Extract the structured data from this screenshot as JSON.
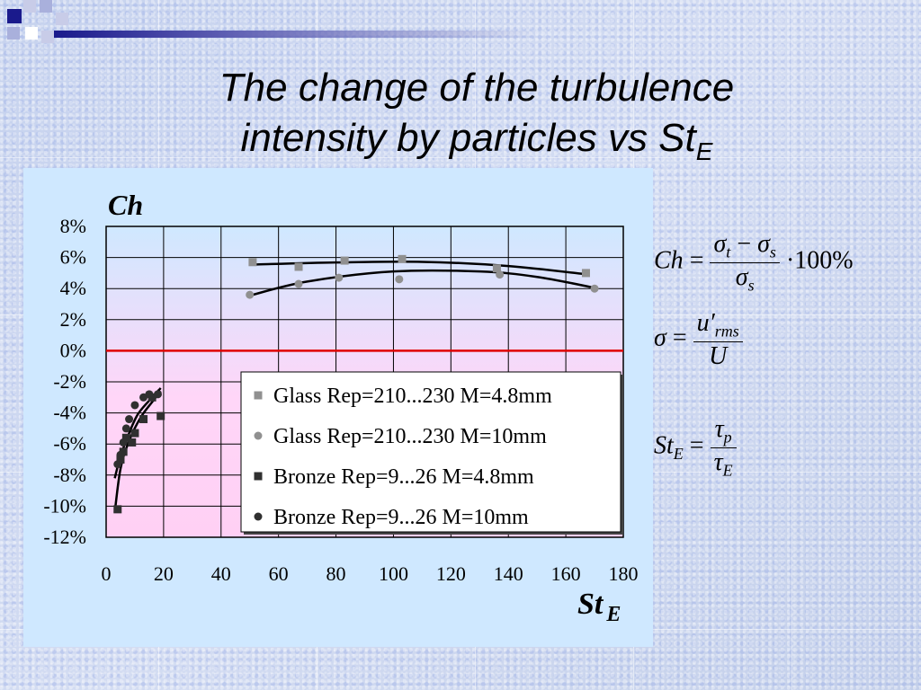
{
  "slide": {
    "title_line1": "The change of the turbulence",
    "title_line2": "intensity by particles vs St",
    "title_sub": "E"
  },
  "formulas": {
    "ch": {
      "lhs": "Ch",
      "eq": "=",
      "num_a": "σ",
      "num_a_sub": "t",
      "minus": "−",
      "num_b": "σ",
      "num_b_sub": "s",
      "den": "σ",
      "den_sub": "s",
      "factor": "·100%"
    },
    "sigma": {
      "lhs": "σ",
      "eq": "=",
      "num": "u′",
      "num_sub": "rms",
      "den": "U"
    },
    "st": {
      "lhs": "St",
      "lhs_sub": "E",
      "eq": "=",
      "num": "τ",
      "num_sub": "p",
      "den": "τ",
      "den_sub": "E"
    }
  },
  "chart_data": {
    "type": "scatter",
    "ylabel": "Ch",
    "xlabel": "St",
    "xlabel_sub": "E",
    "xlim": [
      0,
      180
    ],
    "ylim": [
      -12,
      8
    ],
    "x_ticks": [
      "0",
      "20",
      "40",
      "60",
      "80",
      "100",
      "120",
      "140",
      "160",
      "180"
    ],
    "y_ticks": [
      "8%",
      "6%",
      "4%",
      "2%",
      "0%",
      "-2%",
      "-4%",
      "-6%",
      "-8%",
      "-10%",
      "-12%"
    ],
    "zero_line_color": "#e00000",
    "grid": true,
    "legend_position": "lower-right",
    "series": [
      {
        "name": "Glass Rep=210...230 M=4.8mm",
        "marker": "square",
        "color": "#909090",
        "points": [
          [
            51,
            5.7
          ],
          [
            67,
            5.4
          ],
          [
            83,
            5.8
          ],
          [
            103,
            5.9
          ],
          [
            136,
            5.3
          ],
          [
            167,
            5.0
          ]
        ]
      },
      {
        "name": "Glass Rep=210...230 M=10mm",
        "marker": "circle",
        "color": "#909090",
        "points": [
          [
            50,
            3.6
          ],
          [
            67,
            4.3
          ],
          [
            81,
            4.7
          ],
          [
            102,
            4.6
          ],
          [
            137,
            4.9
          ],
          [
            170,
            4.0
          ]
        ]
      },
      {
        "name": "Bronze Rep=9...26 M=4.8mm",
        "marker": "square",
        "color": "#303030",
        "points": [
          [
            4,
            -10.2
          ],
          [
            5,
            -7.0
          ],
          [
            6,
            -6.5
          ],
          [
            7,
            -5.6
          ],
          [
            9,
            -5.9
          ],
          [
            10,
            -5.3
          ],
          [
            13,
            -4.4
          ],
          [
            16,
            -3.0
          ],
          [
            19,
            -4.2
          ]
        ]
      },
      {
        "name": "Bronze Rep=9...26 M=10mm",
        "marker": "circle",
        "color": "#303030",
        "points": [
          [
            4,
            -7.3
          ],
          [
            5,
            -6.7
          ],
          [
            6,
            -5.9
          ],
          [
            7,
            -5.0
          ],
          [
            8,
            -4.4
          ],
          [
            10,
            -3.5
          ],
          [
            13,
            -3.0
          ],
          [
            15,
            -2.8
          ],
          [
            18,
            -2.8
          ]
        ]
      }
    ],
    "trendlines": [
      {
        "points": [
          [
            52,
            5.55
          ],
          [
            80,
            5.68
          ],
          [
            110,
            5.72
          ],
          [
            140,
            5.45
          ],
          [
            168,
            4.9
          ]
        ]
      },
      {
        "points": [
          [
            50,
            3.55
          ],
          [
            70,
            4.45
          ],
          [
            100,
            5.1
          ],
          [
            130,
            5.1
          ],
          [
            150,
            4.75
          ],
          [
            170,
            4.05
          ]
        ]
      },
      {
        "points": [
          [
            3,
            -10.4
          ],
          [
            5,
            -7.6
          ],
          [
            8,
            -5.8
          ],
          [
            12,
            -4.3
          ],
          [
            16,
            -3.3
          ],
          [
            19,
            -2.6
          ]
        ]
      },
      {
        "points": [
          [
            3,
            -8.2
          ],
          [
            5,
            -6.8
          ],
          [
            8,
            -5.3
          ],
          [
            11,
            -4.1
          ],
          [
            15,
            -3.2
          ],
          [
            19,
            -2.4
          ]
        ]
      }
    ]
  }
}
